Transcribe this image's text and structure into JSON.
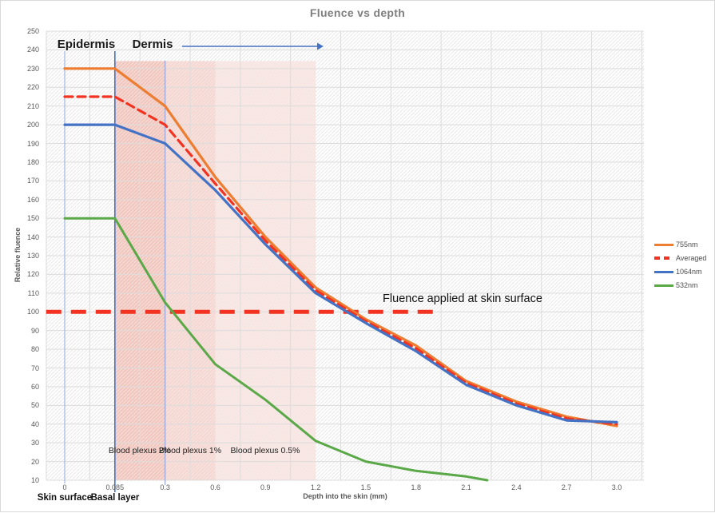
{
  "title": "Fluence vs depth",
  "chart_data": {
    "type": "line",
    "title": "Fluence vs depth",
    "xlabel": "Depth into the skin (mm)",
    "ylabel": "Relative fluence",
    "ylim": [
      10,
      250
    ],
    "ytick_step": 10,
    "xaxis_type": "category",
    "grid": true,
    "legend_position": "right",
    "categories": [
      "0",
      "0.085",
      "0.3",
      "0.6",
      "0.9",
      "1.2",
      "1.5",
      "1.8",
      "2.1",
      "2.4",
      "2.7",
      "3.0"
    ],
    "series": [
      {
        "name": "755nm",
        "color": "#ED7D31",
        "width": 3.2,
        "dash": false,
        "values": [
          230,
          230,
          210,
          172,
          140,
          113,
          96,
          82,
          63,
          52,
          44,
          39
        ]
      },
      {
        "name": "Averaged",
        "color": "#F23321",
        "width": 3.2,
        "dash": true,
        "values": [
          215,
          215,
          200,
          168.5,
          138,
          111.5,
          95,
          80.5,
          62,
          51,
          43,
          40
        ]
      },
      {
        "name": "1064nm",
        "color": "#4472C4",
        "width": 3.2,
        "dash": false,
        "values": [
          200,
          200,
          190,
          165,
          136,
          110,
          94,
          79,
          61,
          50,
          42,
          41
        ]
      },
      {
        "name": "532nm",
        "color": "#5BA848",
        "width": 3,
        "dash": false,
        "points": [
          [
            0,
            150
          ],
          [
            1,
            150
          ],
          [
            2,
            105
          ],
          [
            3,
            72
          ],
          [
            4,
            53
          ],
          [
            5,
            31
          ],
          [
            6,
            20
          ],
          [
            7,
            15
          ],
          [
            8,
            12
          ],
          [
            8.42,
            10
          ]
        ]
      }
    ],
    "zones": [
      {
        "label": "Blood plexus 2%",
        "from": 1,
        "to": 2,
        "top_value": 234,
        "color": "#DE705A",
        "opacity": 0.4
      },
      {
        "label": "Blood plexus 1%",
        "from": 2,
        "to": 3,
        "top_value": 234,
        "color": "#DE705A",
        "opacity": 0.28
      },
      {
        "label": "Blood plexus 0.5%",
        "from": 3,
        "to": 5,
        "top_value": 234,
        "color": "#DE705A",
        "opacity": 0.18
      }
    ],
    "vlines": [
      {
        "name": "skin-surface-line",
        "cat": 0,
        "y_top": 63,
        "y_bottom": 604,
        "color": "#8FAADC",
        "width": 1
      },
      {
        "name": "basal-layer-line",
        "cat": 1,
        "y_top": 63,
        "y_bottom": 615,
        "color": "#4472C4",
        "width": 1.6
      },
      {
        "name": "plexus-boundary-line",
        "cat": 2,
        "y_top": 75,
        "y_bottom": 606,
        "color": "#97A4D7",
        "width": 1.2
      }
    ],
    "ref_line": {
      "label": "Fluence applied at skin surface",
      "value": 100,
      "from_cat": -0.37,
      "to_cat": 7.44,
      "color": "#F23321",
      "width": 5,
      "dash": [
        19,
        12
      ]
    }
  },
  "annotations": {
    "epidermis": "Epidermis",
    "dermis": "Dermis",
    "skin_surface": "Skin surface",
    "basal_layer": "Basal layer",
    "arrow_color": "#4472C4"
  },
  "legend": {
    "items": [
      "755nm",
      "Averaged",
      "1064nm",
      "532nm"
    ]
  }
}
